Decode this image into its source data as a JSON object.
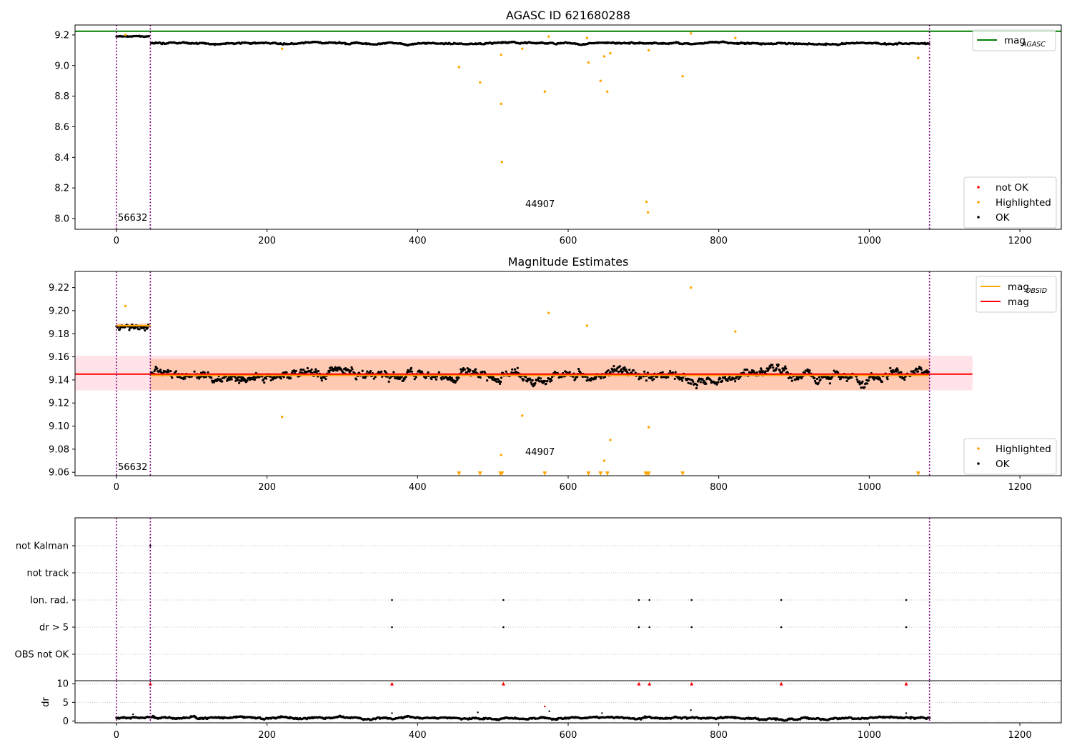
{
  "colors": {
    "ok": "#000000",
    "highlighted": "#ffa500",
    "not_ok": "#ff0000",
    "agasc_line": "#008000",
    "obsid_line": "#ffa500",
    "mag_line": "#ff0000",
    "mag_band": "#ffc0cb",
    "obsid_band": "#ffb27f",
    "obs_boundary": "#800080",
    "grid": "#b0b0b0"
  },
  "chart_data": [
    {
      "id": "agasc",
      "type": "scatter",
      "title": "AGASC ID 621680288",
      "xlim": [
        -55,
        1255
      ],
      "ylim": [
        7.93,
        9.265
      ],
      "xticks": [
        0,
        200,
        400,
        600,
        800,
        1000,
        1200
      ],
      "yticks": [
        8.0,
        8.2,
        8.4,
        8.6,
        8.8,
        9.0,
        9.2
      ],
      "ytick_labels": [
        "8.0",
        "8.2",
        "8.4",
        "8.6",
        "8.8",
        "9.0",
        "9.2"
      ],
      "hlines": [
        {
          "name": "mag_AGASC",
          "y": 9.224,
          "color": "agasc_line"
        }
      ],
      "obs_boundaries": [
        0,
        45,
        1080
      ],
      "obs_labels": [
        {
          "text": "56632",
          "x": 2,
          "y": 7.985
        },
        {
          "text": "44907",
          "x": 543,
          "y": 8.075
        }
      ],
      "ok_segments": [
        {
          "x0": 0,
          "x1": 44,
          "base": 9.19,
          "amp": 0.006
        },
        {
          "x0": 46,
          "x1": 1080,
          "base": 9.145,
          "amp": 0.012
        }
      ],
      "highlighted_points": [
        [
          12,
          9.2
        ],
        [
          220,
          9.11
        ],
        [
          455,
          8.99
        ],
        [
          483,
          8.89
        ],
        [
          511,
          9.07
        ],
        [
          511,
          8.75
        ],
        [
          512,
          8.37
        ],
        [
          539,
          9.11
        ],
        [
          569,
          8.83
        ],
        [
          574,
          9.19
        ],
        [
          625,
          9.18
        ],
        [
          627,
          9.02
        ],
        [
          643,
          8.9
        ],
        [
          648,
          9.06
        ],
        [
          652,
          8.83
        ],
        [
          656,
          9.08
        ],
        [
          704,
          8.11
        ],
        [
          706,
          8.04
        ],
        [
          707,
          9.1
        ],
        [
          752,
          8.93
        ],
        [
          763,
          9.21
        ],
        [
          822,
          9.18
        ],
        [
          1065,
          9.05
        ]
      ],
      "not_ok_points": [],
      "legend_upper": [
        {
          "label": "mag",
          "sub": "AGASC",
          "kind": "line",
          "color": "agasc_line"
        }
      ],
      "legend_lower": [
        {
          "label": "not OK",
          "kind": "dot",
          "color": "not_ok"
        },
        {
          "label": "Highlighted",
          "kind": "dot",
          "color": "highlighted"
        },
        {
          "label": "OK",
          "kind": "dot",
          "color": "ok"
        }
      ]
    },
    {
      "id": "estimates",
      "type": "scatter",
      "title": "Magnitude Estimates",
      "xlim": [
        -55,
        1255
      ],
      "ylim": [
        9.057,
        9.234
      ],
      "xticks": [
        0,
        200,
        400,
        600,
        800,
        1000,
        1200
      ],
      "yticks": [
        9.06,
        9.08,
        9.1,
        9.12,
        9.14,
        9.16,
        9.18,
        9.2,
        9.22
      ],
      "ytick_labels": [
        "9.06",
        "9.08",
        "9.10",
        "9.12",
        "9.14",
        "9.16",
        "9.18",
        "9.20",
        "9.22"
      ],
      "mag": {
        "value": 9.145,
        "band": [
          9.131,
          9.161
        ],
        "x_range": [
          -55,
          1137
        ]
      },
      "obsid_mags": [
        {
          "x0": 0,
          "x1": 45,
          "value": 9.187,
          "band": [
            9.185,
            9.189
          ]
        },
        {
          "x0": 45,
          "x1": 1080,
          "value": 9.144,
          "band": [
            9.131,
            9.158
          ]
        }
      ],
      "obs_boundaries": [
        0,
        45,
        1080
      ],
      "obs_labels": [
        {
          "text": "56632",
          "x": 2,
          "y": 9.062
        },
        {
          "text": "44907",
          "x": 543,
          "y": 9.075
        }
      ],
      "ok_segments": [
        {
          "x0": 0,
          "x1": 44,
          "base": 9.186,
          "amp": 0.008
        },
        {
          "x0": 46,
          "x1": 1080,
          "base": 9.144,
          "amp": 0.01
        }
      ],
      "highlighted_points": [
        [
          12,
          9.204
        ],
        [
          220,
          9.108
        ],
        [
          511,
          9.075
        ],
        [
          539,
          9.109
        ],
        [
          574,
          9.198
        ],
        [
          625,
          9.187
        ],
        [
          648,
          9.07
        ],
        [
          656,
          9.088
        ],
        [
          707,
          9.099
        ],
        [
          763,
          9.22
        ],
        [
          822,
          9.182
        ]
      ],
      "clipped_markers": [
        455,
        483,
        510,
        512,
        569,
        627,
        643,
        652,
        703,
        705,
        707,
        752,
        1065
      ],
      "legend_upper": [
        {
          "label": "mag",
          "sub": "OBSID",
          "kind": "line",
          "color": "obsid_line"
        },
        {
          "label": "mag",
          "kind": "line",
          "color": "mag_line"
        }
      ],
      "legend_lower": [
        {
          "label": "Highlighted",
          "kind": "dot",
          "color": "highlighted"
        },
        {
          "label": "OK",
          "kind": "dot",
          "color": "ok"
        }
      ]
    },
    {
      "id": "flags",
      "type": "scatter",
      "xlim": [
        -55,
        1255
      ],
      "xticks": [
        0,
        200,
        400,
        600,
        800,
        1000,
        1200
      ],
      "categories": [
        "not Kalman",
        "not track",
        "Ion. rad.",
        "dr > 5",
        "OBS not OK"
      ],
      "flag_points": [
        {
          "category": "not Kalman",
          "x": [
            45
          ]
        },
        {
          "category": "not track",
          "x": []
        },
        {
          "category": "Ion. rad.",
          "x": [
            366,
            514,
            694,
            708,
            764,
            883,
            1049
          ]
        },
        {
          "category": "dr > 5",
          "x": [
            366,
            514,
            694,
            708,
            764,
            883,
            1049
          ]
        },
        {
          "category": "OBS not OK",
          "x": []
        }
      ],
      "obs_boundaries": [
        0,
        45,
        1080
      ]
    },
    {
      "id": "dr",
      "type": "scatter",
      "ylabel": "dr",
      "xlim": [
        -55,
        1255
      ],
      "ylim": [
        -0.5,
        10.8
      ],
      "xticks": [
        0,
        200,
        400,
        600,
        800,
        1000,
        1200
      ],
      "xtick_labels": [
        "0",
        "200",
        "400",
        "600",
        "800",
        "1000",
        "1200"
      ],
      "yticks": [
        0,
        5,
        10
      ],
      "ytick_labels": [
        "0",
        "5",
        "10"
      ],
      "ok_segments": [
        {
          "x0": 0,
          "x1": 1080,
          "base": 0.8,
          "amp": 0.6
        }
      ],
      "dr_outliers": [
        [
          22,
          1.8
        ],
        [
          366,
          2.1
        ],
        [
          480,
          2.3
        ],
        [
          569,
          3.9
        ],
        [
          575,
          2.6
        ],
        [
          645,
          2.1
        ],
        [
          763,
          2.9
        ],
        [
          1049,
          2.1
        ]
      ],
      "clipped_markers": [
        45,
        366,
        514,
        694,
        708,
        764,
        883,
        1049
      ],
      "obs_boundaries": [
        0,
        45,
        1080
      ]
    }
  ]
}
